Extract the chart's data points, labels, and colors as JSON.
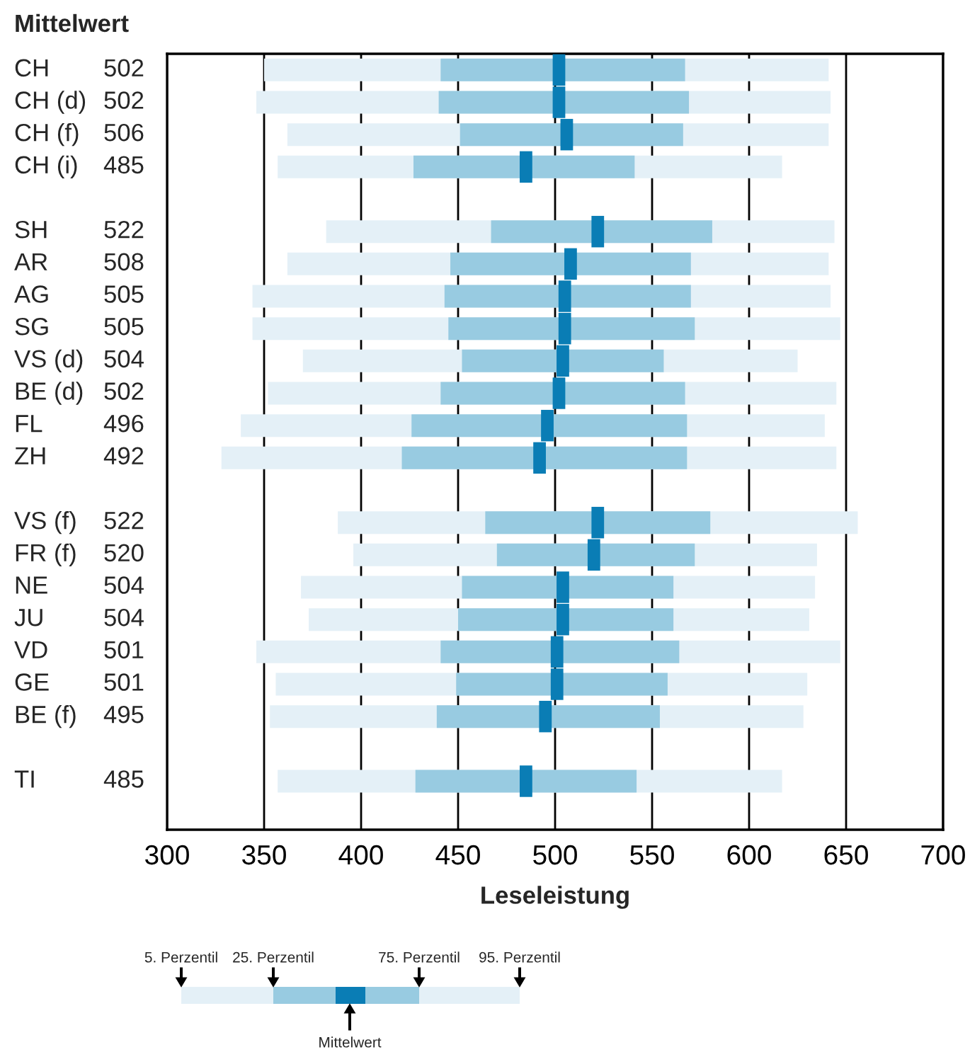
{
  "chart_data": {
    "type": "bar",
    "orientation": "horizontal",
    "title": "Mittelwert",
    "xlabel": "Leseleistung",
    "categories": [
      "CH",
      "CH (d)",
      "CH (f)",
      "CH (i)",
      null,
      "SH",
      "AR",
      "AG",
      "SG",
      "VS (d)",
      "BE (d)",
      "FL",
      "ZH",
      null,
      "VS (f)",
      "FR (f)",
      "NE",
      "JU",
      "VD",
      "GE",
      "BE (f)",
      null,
      "TI"
    ],
    "series": [
      {
        "color": "#e4f0f7",
        "base": [
          350,
          346,
          362,
          357,
          null,
          382,
          362,
          344,
          344,
          370,
          352,
          338,
          328,
          null,
          388,
          396,
          369,
          373,
          346,
          356,
          353,
          null,
          357
        ],
        "values": [
          291,
          296,
          279,
          260,
          null,
          262,
          279,
          298,
          303,
          255,
          293,
          301,
          317,
          null,
          268,
          239,
          265,
          258,
          301,
          274,
          275,
          null,
          260
        ]
      },
      {
        "color": "#98cbe1",
        "base": [
          441,
          440,
          451,
          427,
          null,
          467,
          446,
          443,
          445,
          452,
          441,
          426,
          421,
          null,
          464,
          470,
          452,
          450,
          441,
          449,
          439,
          null,
          428
        ],
        "values": [
          126,
          129,
          115,
          114,
          null,
          114,
          124,
          127,
          127,
          104,
          126,
          142,
          147,
          null,
          116,
          102,
          109,
          111,
          123,
          109,
          115,
          null,
          114
        ]
      },
      {
        "type": "scatter",
        "marker": "square",
        "color": "#0a7db5",
        "values": [
          502,
          502,
          506,
          485,
          null,
          522,
          508,
          505,
          505,
          504,
          502,
          496,
          492,
          null,
          522,
          520,
          504,
          504,
          501,
          501,
          495,
          null,
          485
        ],
        "value_labels": [
          "502",
          "502",
          "506",
          "485",
          null,
          "522",
          "508",
          "505",
          "505",
          "504",
          "502",
          "496",
          "492",
          null,
          "522",
          "520",
          "504",
          "504",
          "501",
          "501",
          "495",
          null,
          "485"
        ]
      }
    ],
    "xlim": [
      300,
      700
    ],
    "xticks": [
      300,
      350,
      400,
      450,
      500,
      550,
      600,
      650,
      700
    ],
    "grid": "x",
    "annotations": [
      "5. Perzentil",
      "25. Perzentil",
      "75. Perzentil",
      "95. Perzentil",
      "Mittelwert"
    ]
  }
}
